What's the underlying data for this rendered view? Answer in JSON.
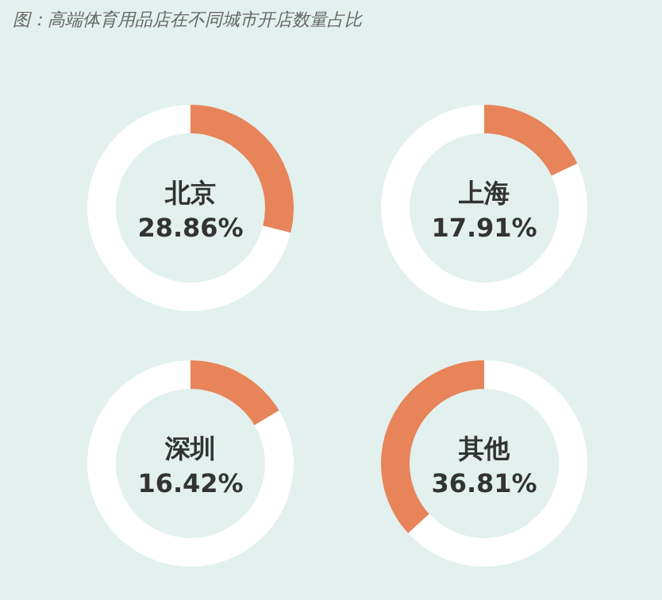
{
  "chart_data": [
    {
      "type": "donut",
      "title": "图：高端体育用品店在不同城市开店数量占比",
      "categories": [
        "北京",
        null
      ],
      "values": [
        28.86,
        71.14
      ],
      "colors": [
        "#e8845a",
        "#ffffff"
      ],
      "value_labels": [
        "28.86%",
        null
      ]
    },
    {
      "type": "donut",
      "categories": [
        "上海",
        null
      ],
      "values": [
        17.91,
        82.09
      ],
      "colors": [
        "#e8845a",
        "#ffffff"
      ],
      "value_labels": [
        "17.91%",
        null
      ]
    },
    {
      "type": "donut",
      "categories": [
        "深圳",
        null
      ],
      "values": [
        16.42,
        83.58
      ],
      "colors": [
        "#e8845a",
        "#ffffff"
      ],
      "value_labels": [
        "16.42%",
        null
      ]
    },
    {
      "type": "donut",
      "categories": [
        null,
        "其他"
      ],
      "values": [
        63.19,
        36.81
      ],
      "colors": [
        "#ffffff",
        "#e8845a"
      ],
      "value_labels": [
        null,
        "36.81%"
      ]
    }
  ]
}
